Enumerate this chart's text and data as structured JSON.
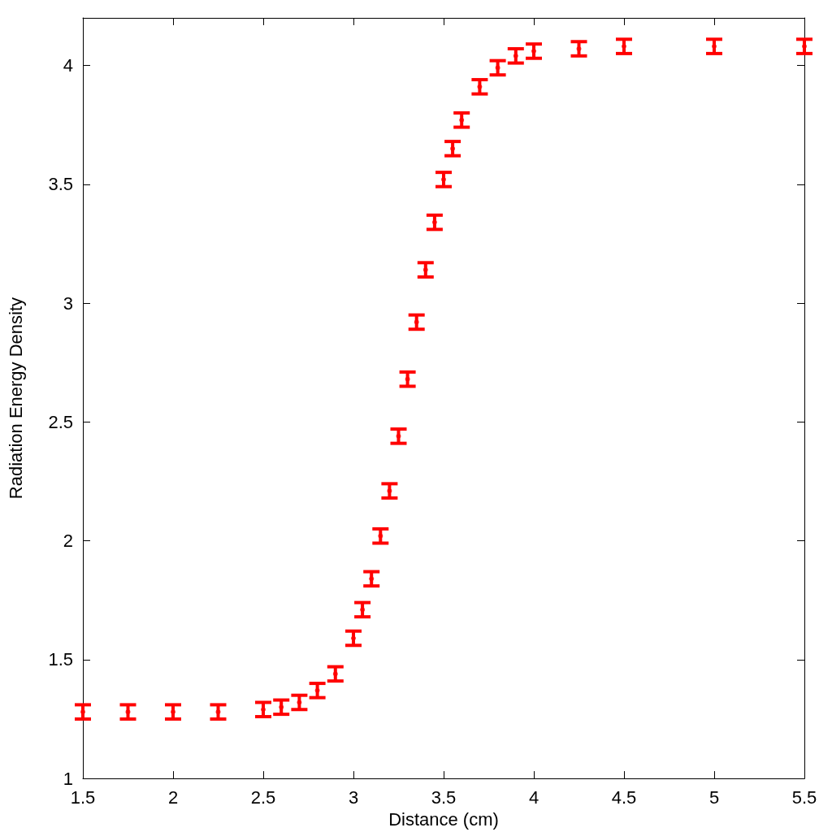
{
  "chart_data": {
    "type": "scatter",
    "xlabel": "Distance (cm)",
    "ylabel": "Radiation Energy Density",
    "x": [
      1.5,
      1.75,
      2.0,
      2.25,
      2.5,
      2.6,
      2.7,
      2.8,
      2.9,
      3.0,
      3.05,
      3.1,
      3.15,
      3.2,
      3.25,
      3.3,
      3.35,
      3.4,
      3.45,
      3.5,
      3.55,
      3.6,
      3.7,
      3.8,
      3.9,
      4.0,
      4.25,
      4.5,
      5.0,
      5.5
    ],
    "series": [
      {
        "color": "#ff0000",
        "values": [
          1.28,
          1.28,
          1.28,
          1.28,
          1.29,
          1.3,
          1.32,
          1.37,
          1.44,
          1.59,
          1.71,
          1.84,
          2.02,
          2.21,
          2.44,
          2.68,
          2.92,
          3.14,
          3.34,
          3.52,
          3.65,
          3.77,
          3.91,
          3.99,
          4.04,
          4.06,
          4.07,
          4.08,
          4.08,
          4.08
        ],
        "errors": [
          0.03,
          0.03,
          0.03,
          0.03,
          0.03,
          0.03,
          0.03,
          0.03,
          0.03,
          0.03,
          0.03,
          0.03,
          0.03,
          0.03,
          0.03,
          0.03,
          0.03,
          0.03,
          0.03,
          0.03,
          0.03,
          0.03,
          0.03,
          0.03,
          0.03,
          0.03,
          0.03,
          0.03,
          0.03,
          0.03
        ]
      }
    ],
    "xlim": [
      1.5,
      5.5
    ],
    "xticks": [
      1.5,
      2,
      2.5,
      3,
      3.5,
      4,
      4.5,
      5,
      5.5
    ],
    "ylim": [
      1,
      4.2
    ],
    "yticks": [
      1,
      1.5,
      2,
      2.5,
      3,
      3.5,
      4
    ],
    "marker": "circle",
    "grid": false
  }
}
